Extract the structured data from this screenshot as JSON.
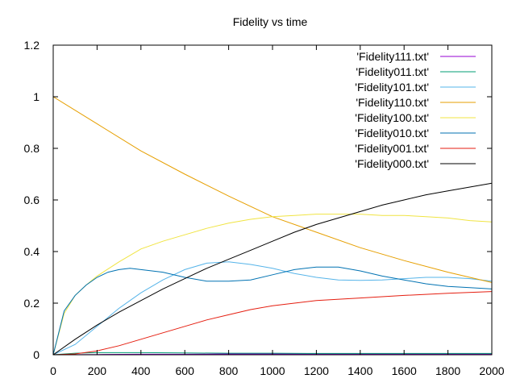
{
  "chart_data": {
    "type": "line",
    "title": "Fidelity vs time",
    "xlabel": "",
    "ylabel": "",
    "xlim": [
      0,
      2000
    ],
    "ylim": [
      0,
      1.2
    ],
    "xticks": [
      "0",
      "200",
      "400",
      "600",
      "800",
      "1000",
      "1200",
      "1400",
      "1600",
      "1800",
      "2000"
    ],
    "yticks": [
      "0",
      "0.2",
      "0.4",
      "0.6",
      "0.8",
      "1",
      "1.2"
    ],
    "legend_position": "top-right",
    "grid": false,
    "series": [
      {
        "name": "'Fidelity111.txt'",
        "color": "#9400d3",
        "x": [
          0,
          200,
          400,
          600,
          800,
          1000,
          1200,
          1400,
          1600,
          1800,
          2000
        ],
        "y": [
          0.0,
          0.001,
          0.002,
          0.002,
          0.003,
          0.003,
          0.003,
          0.003,
          0.003,
          0.003,
          0.003
        ]
      },
      {
        "name": "'Fidelity011.txt'",
        "color": "#009e73",
        "x": [
          0,
          100,
          200,
          400,
          600,
          800,
          1000,
          1200,
          1400,
          1600,
          1800,
          2000
        ],
        "y": [
          0.0,
          0.006,
          0.008,
          0.008,
          0.007,
          0.006,
          0.006,
          0.005,
          0.005,
          0.005,
          0.005,
          0.005
        ]
      },
      {
        "name": "'Fidelity101.txt'",
        "color": "#56b4e9",
        "x": [
          0,
          100,
          200,
          300,
          400,
          500,
          600,
          700,
          800,
          900,
          1000,
          1100,
          1200,
          1300,
          1400,
          1500,
          1600,
          1700,
          1800,
          1900,
          2000
        ],
        "y": [
          0.0,
          0.04,
          0.11,
          0.18,
          0.24,
          0.29,
          0.33,
          0.355,
          0.36,
          0.35,
          0.335,
          0.315,
          0.3,
          0.29,
          0.288,
          0.29,
          0.295,
          0.3,
          0.3,
          0.295,
          0.285
        ]
      },
      {
        "name": "'Fidelity110.txt'",
        "color": "#e69f00",
        "x": [
          0,
          200,
          400,
          600,
          800,
          1000,
          1200,
          1400,
          1600,
          1800,
          2000
        ],
        "y": [
          1.0,
          0.895,
          0.79,
          0.7,
          0.615,
          0.535,
          0.475,
          0.415,
          0.365,
          0.32,
          0.28
        ]
      },
      {
        "name": "'Fidelity100.txt'",
        "color": "#f0e442",
        "x": [
          0,
          50,
          100,
          150,
          200,
          300,
          400,
          500,
          600,
          700,
          800,
          900,
          1000,
          1100,
          1200,
          1300,
          1400,
          1500,
          1600,
          1700,
          1800,
          1900,
          2000
        ],
        "y": [
          0.0,
          0.16,
          0.23,
          0.27,
          0.305,
          0.36,
          0.41,
          0.44,
          0.465,
          0.49,
          0.51,
          0.525,
          0.535,
          0.54,
          0.545,
          0.545,
          0.545,
          0.54,
          0.54,
          0.535,
          0.53,
          0.52,
          0.515
        ]
      },
      {
        "name": "'Fidelity010.txt'",
        "color": "#0072b2",
        "x": [
          0,
          50,
          100,
          150,
          200,
          250,
          300,
          350,
          400,
          500,
          600,
          700,
          800,
          900,
          1000,
          1100,
          1200,
          1300,
          1400,
          1500,
          1600,
          1700,
          1800,
          1900,
          2000
        ],
        "y": [
          0.0,
          0.17,
          0.23,
          0.27,
          0.3,
          0.32,
          0.33,
          0.335,
          0.33,
          0.32,
          0.3,
          0.285,
          0.285,
          0.29,
          0.31,
          0.33,
          0.34,
          0.34,
          0.325,
          0.305,
          0.29,
          0.275,
          0.265,
          0.26,
          0.255
        ]
      },
      {
        "name": "'Fidelity001.txt'",
        "color": "#e51e10",
        "x": [
          0,
          100,
          200,
          300,
          400,
          500,
          600,
          700,
          800,
          900,
          1000,
          1100,
          1200,
          1400,
          1600,
          1800,
          2000
        ],
        "y": [
          0.0,
          0.003,
          0.015,
          0.035,
          0.06,
          0.085,
          0.11,
          0.135,
          0.155,
          0.175,
          0.19,
          0.2,
          0.21,
          0.22,
          0.23,
          0.238,
          0.245
        ]
      },
      {
        "name": "'Fidelity000.txt'",
        "color": "#000000",
        "x": [
          0,
          100,
          200,
          300,
          400,
          500,
          600,
          700,
          800,
          900,
          1000,
          1100,
          1200,
          1300,
          1400,
          1500,
          1600,
          1700,
          1800,
          1900,
          2000
        ],
        "y": [
          0.0,
          0.06,
          0.115,
          0.165,
          0.21,
          0.255,
          0.295,
          0.335,
          0.37,
          0.405,
          0.44,
          0.475,
          0.505,
          0.53,
          0.555,
          0.58,
          0.6,
          0.62,
          0.635,
          0.65,
          0.665
        ]
      }
    ]
  }
}
